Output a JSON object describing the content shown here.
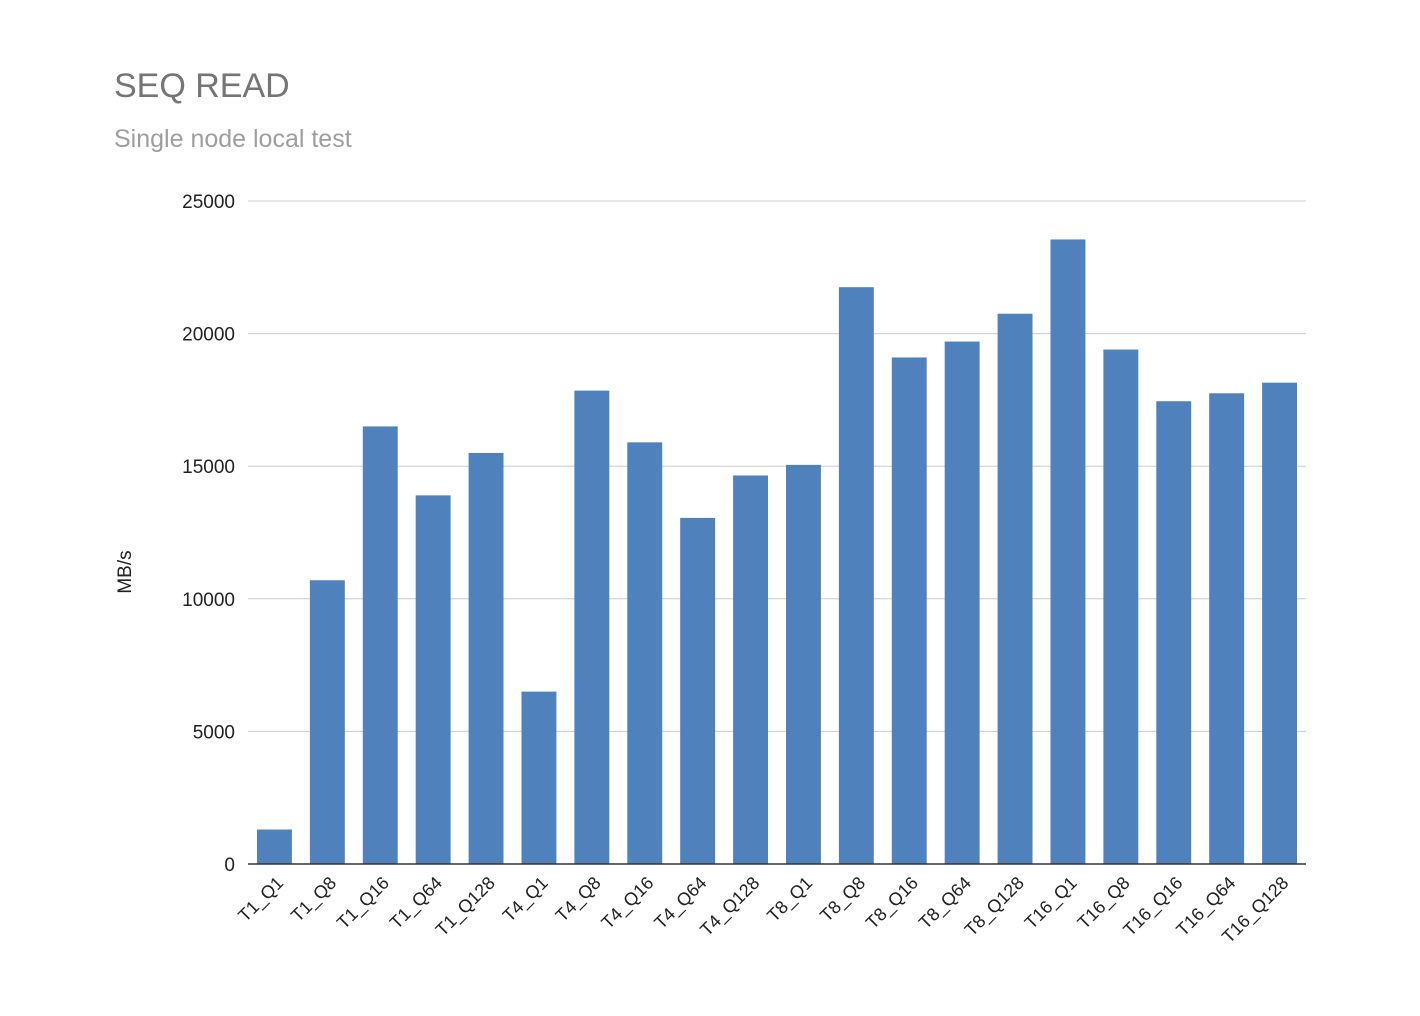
{
  "chart_data": {
    "type": "bar",
    "title": "SEQ READ",
    "subtitle": "Single node local test",
    "xlabel": "",
    "ylabel": "MB/s",
    "ylim": [
      0,
      25000
    ],
    "yticks": [
      "0",
      "5000",
      "10000",
      "15000",
      "20000",
      "25000"
    ],
    "grid": true,
    "legend": "none",
    "bar_color": "#4f81bd",
    "categories": [
      "T1_Q1",
      "T1_Q8",
      "T1_Q16",
      "T1_Q64",
      "T1_Q128",
      "T4_Q1",
      "T4_Q8",
      "T4_Q16",
      "T4_Q64",
      "T4_Q128",
      "T8_Q1",
      "T8_Q8",
      "T8_Q16",
      "T8_Q64",
      "T8_Q128",
      "T16_Q1",
      "T16_Q8",
      "T16_Q16",
      "T16_Q64",
      "T16_Q128"
    ],
    "series": [
      {
        "values": [
          1300,
          10700,
          16500,
          13900,
          15500,
          6500,
          17850,
          15900,
          13050,
          14650,
          15050,
          21750,
          19100,
          19700,
          20750,
          23550,
          19400,
          17450,
          17750,
          18150
        ]
      }
    ]
  }
}
